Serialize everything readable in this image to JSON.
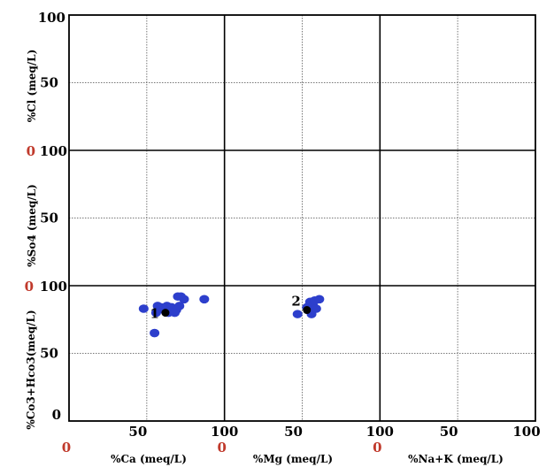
{
  "chart_data": {
    "type": "scatter",
    "panels": {
      "columns": [
        {
          "xlabel": "%Ca (meq/L)",
          "xticks": [
            "0",
            "50",
            "100"
          ]
        },
        {
          "xlabel": "%Mg (meq/L)",
          "xticks": [
            "0",
            "50",
            "100"
          ]
        },
        {
          "xlabel": "%Na+K (meq/L)",
          "xticks": [
            "0",
            "50",
            "100"
          ]
        }
      ],
      "rows": [
        {
          "ylabel": "%Cl (meq/L)",
          "yticks": [
            "0",
            "50",
            "100"
          ]
        },
        {
          "ylabel": "%So4 (meq/L)",
          "yticks": [
            "0",
            "50",
            "100"
          ]
        },
        {
          "ylabel": "%Co3+Hco3(meq/L)",
          "yticks": [
            "0",
            "50",
            "100"
          ]
        }
      ]
    },
    "xlim": [
      0,
      100
    ],
    "ylim": [
      0,
      100
    ],
    "grid": true,
    "series": [
      {
        "color": "#2d3fcc",
        "points": [
          {
            "panel": "Ca-HCO3",
            "x": 48,
            "y": 83
          },
          {
            "panel": "Ca-HCO3",
            "x": 55,
            "y": 65
          },
          {
            "panel": "Ca-HCO3",
            "x": 56,
            "y": 80
          },
          {
            "panel": "Ca-HCO3",
            "x": 57,
            "y": 85
          },
          {
            "panel": "Ca-HCO3",
            "x": 59,
            "y": 84
          },
          {
            "panel": "Ca-HCO3",
            "x": 61,
            "y": 82
          },
          {
            "panel": "Ca-HCO3",
            "x": 63,
            "y": 85
          },
          {
            "panel": "Ca-HCO3",
            "x": 64,
            "y": 80
          },
          {
            "panel": "Ca-HCO3",
            "x": 66,
            "y": 84
          },
          {
            "panel": "Ca-HCO3",
            "x": 68,
            "y": 80
          },
          {
            "panel": "Ca-HCO3",
            "x": 69,
            "y": 82
          },
          {
            "panel": "Ca-HCO3",
            "x": 70,
            "y": 92
          },
          {
            "panel": "Ca-HCO3",
            "x": 71,
            "y": 85
          },
          {
            "panel": "Ca-HCO3",
            "x": 72,
            "y": 92
          },
          {
            "panel": "Ca-HCO3",
            "x": 74,
            "y": 90
          },
          {
            "panel": "Ca-HCO3",
            "x": 87,
            "y": 90
          },
          {
            "panel": "Mg-HCO3",
            "x": 47,
            "y": 79
          },
          {
            "panel": "Mg-HCO3",
            "x": 53,
            "y": 84
          },
          {
            "panel": "Mg-HCO3",
            "x": 55,
            "y": 88
          },
          {
            "panel": "Mg-HCO3",
            "x": 56,
            "y": 79
          },
          {
            "panel": "Mg-HCO3",
            "x": 57,
            "y": 85
          },
          {
            "panel": "Mg-HCO3",
            "x": 58,
            "y": 89
          },
          {
            "panel": "Mg-HCO3",
            "x": 59,
            "y": 83
          },
          {
            "panel": "Mg-HCO3",
            "x": 61,
            "y": 90
          }
        ]
      },
      {
        "color": "#000000",
        "points": [
          {
            "panel": "Ca-HCO3",
            "x": 62,
            "y": 80,
            "label": "1"
          },
          {
            "panel": "Mg-HCO3",
            "x": 53,
            "y": 82,
            "label": "2"
          }
        ]
      }
    ]
  }
}
